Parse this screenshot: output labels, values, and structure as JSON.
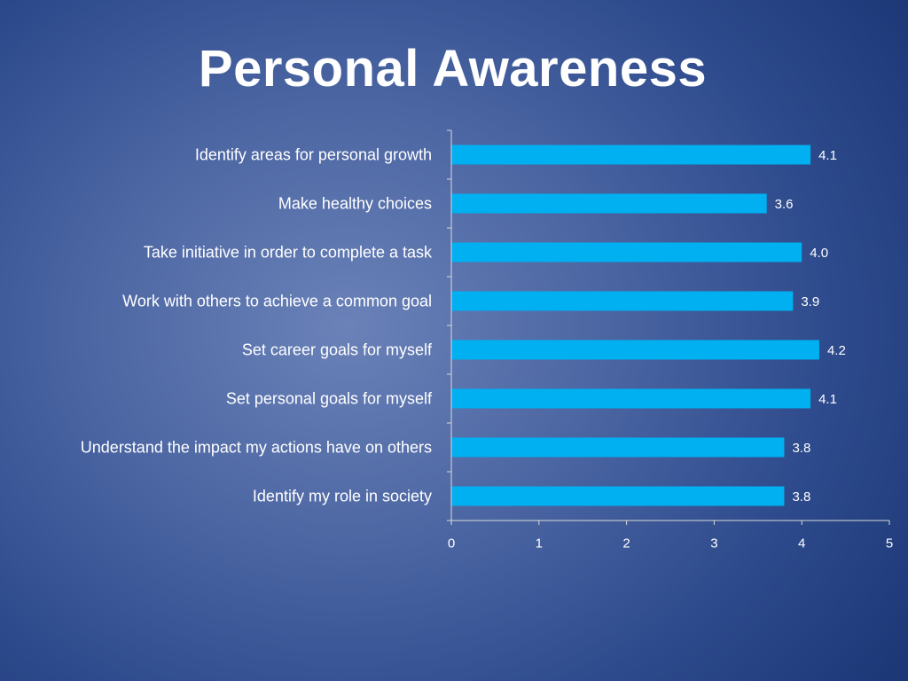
{
  "slide": {
    "title": "Personal Awareness"
  },
  "colors": {
    "bar": "#00b0f0",
    "axis": "#d9d9d9",
    "text": "#ffffff"
  },
  "chart_data": {
    "type": "bar",
    "orientation": "horizontal",
    "title": "Personal Awareness",
    "categories": [
      "Identify areas for personal growth",
      "Make healthy choices",
      "Take initiative in order to complete a task",
      "Work with others to achieve a common goal",
      "Set career goals for myself",
      "Set personal goals for myself",
      "Understand the impact my actions have on others",
      "Identify my role in society"
    ],
    "values": [
      4.1,
      3.6,
      4.0,
      3.9,
      4.2,
      4.1,
      3.8,
      3.8
    ],
    "value_labels": [
      "4.1",
      "3.6",
      "4.0",
      "3.9",
      "4.2",
      "4.1",
      "3.8",
      "3.8"
    ],
    "xlim": [
      0,
      5
    ],
    "x_ticks": [
      "0",
      "1",
      "2",
      "3",
      "4",
      "5"
    ],
    "xlabel": "",
    "ylabel": "",
    "grid": false,
    "legend": "none"
  }
}
